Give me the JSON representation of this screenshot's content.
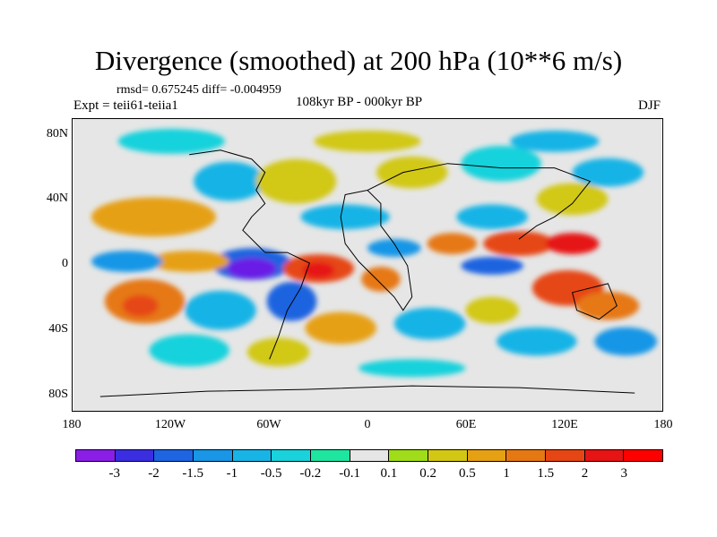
{
  "title": "Divergence (smoothed) at 200 hPa (10**6 m/s)",
  "stats": "rmsd= 0.675245 diff= -0.004959",
  "expt": "Expt = teii61-teiia1",
  "period": "108kyr BP - 000kyr BP",
  "season": "DJF",
  "y_ticks": [
    "80N",
    "40N",
    "0",
    "40S",
    "80S"
  ],
  "x_ticks": [
    "180",
    "120W",
    "60W",
    "0",
    "60E",
    "120E",
    "180"
  ],
  "colorbar": {
    "labels": [
      "-3",
      "-2",
      "-1.5",
      "-1",
      "-0.5",
      "-0.2",
      "-0.1",
      "0.1",
      "0.2",
      "0.5",
      "1",
      "1.5",
      "2",
      "3"
    ],
    "colors": [
      "#8a1ee6",
      "#3b2ee0",
      "#1f64e0",
      "#1996e6",
      "#19b4e6",
      "#19d2dc",
      "#1ee6a0",
      "#e6e6e6",
      "#a0dc19",
      "#d2c814",
      "#e6a014",
      "#e67814",
      "#e64614",
      "#e61414",
      "#ff0000"
    ]
  }
}
